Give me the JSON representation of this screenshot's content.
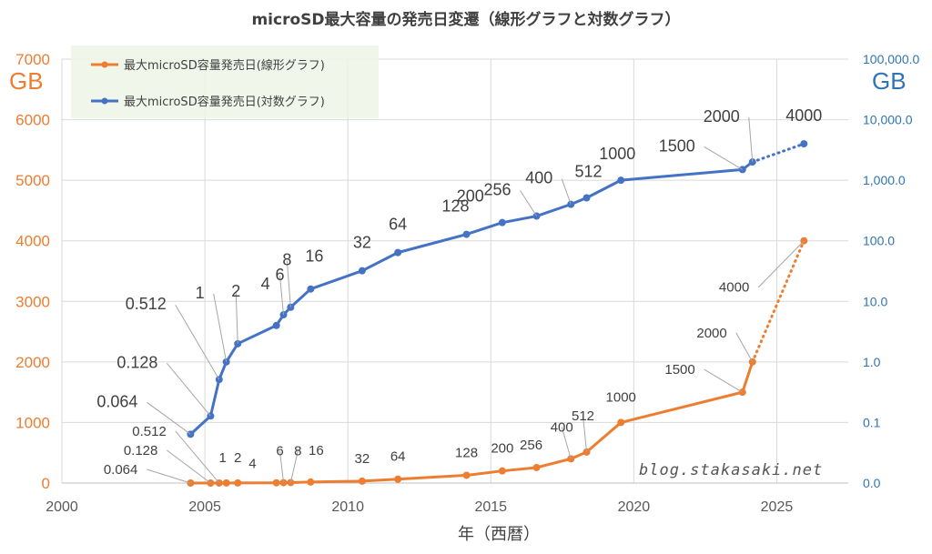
{
  "chart_data": {
    "type": "line",
    "title": "microSD最大容量の発売日変遷（線形グラフと対数グラフ）",
    "xlabel": "年（西暦）",
    "ylabel_left": "GB",
    "ylabel_right": "GB",
    "xlim": [
      2000,
      2027.5
    ],
    "x_ticks": [
      "2000",
      "2005",
      "2010",
      "2015",
      "2020",
      "2025"
    ],
    "ylim_left": [
      0,
      7000
    ],
    "y_ticks_left": [
      "0",
      "1000",
      "2000",
      "3000",
      "4000",
      "5000",
      "6000",
      "7000"
    ],
    "ylim_right_log": [
      0.01,
      100000
    ],
    "y_ticks_right": [
      "0.0",
      "0.1",
      "1.0",
      "10.0",
      "100.0",
      "1,000.0",
      "10,000.0",
      "100,000.0"
    ],
    "grid": true,
    "legend_position": "top-left",
    "watermark": "blog.stakasaki.net",
    "x": [
      2004.5,
      2005.2,
      2005.5,
      2005.75,
      2006.15,
      2007.5,
      2007.75,
      2008.0,
      2008.7,
      2010.5,
      2011.75,
      2014.15,
      2015.4,
      2016.6,
      2017.8,
      2018.35,
      2019.55,
      2023.8,
      2024.15,
      2025.95
    ],
    "series": [
      {
        "name": "最大microSD容量発売日(線形グラフ)",
        "axis": "left",
        "color": "#ed7d31",
        "values": [
          0.064,
          0.128,
          0.512,
          1,
          2,
          4,
          6,
          8,
          16,
          32,
          64,
          128,
          200,
          256,
          400,
          512,
          1000,
          1500,
          2000,
          4000
        ],
        "labels": [
          "0.064",
          "0.128",
          "0.512",
          "1",
          "2",
          "4",
          "6",
          "8",
          "16",
          "32",
          "64",
          "128",
          "200",
          "256",
          "400",
          "512",
          "1000",
          "1500",
          "2000",
          "4000"
        ],
        "dotted_last_segment": true
      },
      {
        "name": "最大microSD容量発売日(対数グラフ)",
        "axis": "right",
        "color": "#4472c4",
        "values": [
          0.064,
          0.128,
          0.512,
          1,
          2,
          4,
          6,
          8,
          16,
          32,
          64,
          128,
          200,
          256,
          400,
          512,
          1000,
          1500,
          2000,
          4000
        ],
        "labels": [
          "0.064",
          "0.128",
          "0.512",
          "1",
          "2",
          "4",
          "6",
          "8",
          "16",
          "32",
          "64",
          "128",
          "200",
          "256",
          "400",
          "512",
          "1000",
          "1500",
          "2000",
          "4000"
        ],
        "dotted_last_segment": true
      }
    ]
  }
}
